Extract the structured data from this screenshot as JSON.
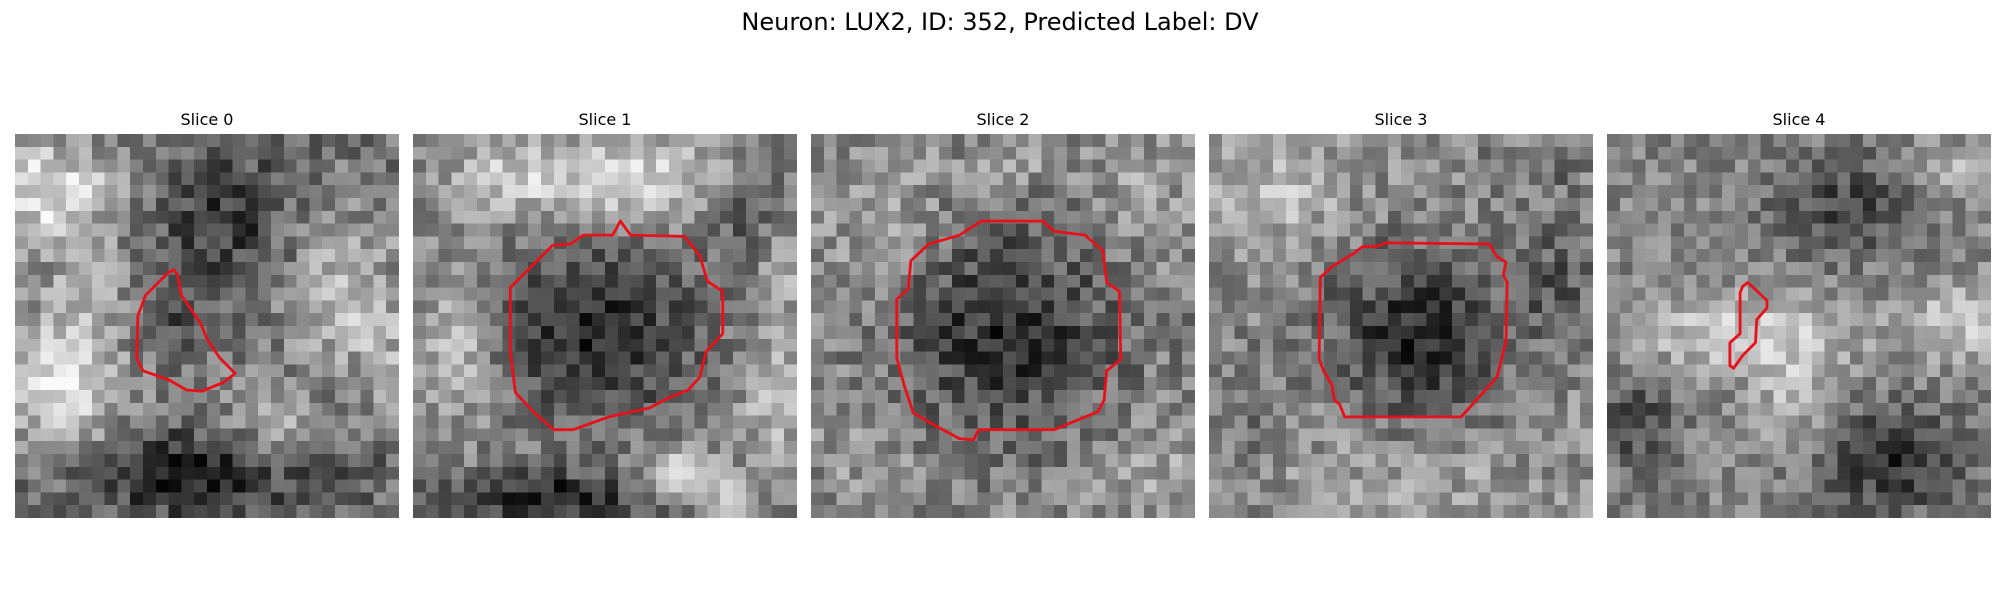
{
  "figure": {
    "title": "Neuron: LUX2, ID: 352, Predicted Label: DV",
    "contour_color": "#e8101a",
    "colormap": "gray"
  },
  "slices": [
    {
      "label": "Slice 0"
    },
    {
      "label": "Slice 1"
    },
    {
      "label": "Slice 2"
    },
    {
      "label": "Slice 3"
    },
    {
      "label": "Slice 4"
    }
  ]
}
